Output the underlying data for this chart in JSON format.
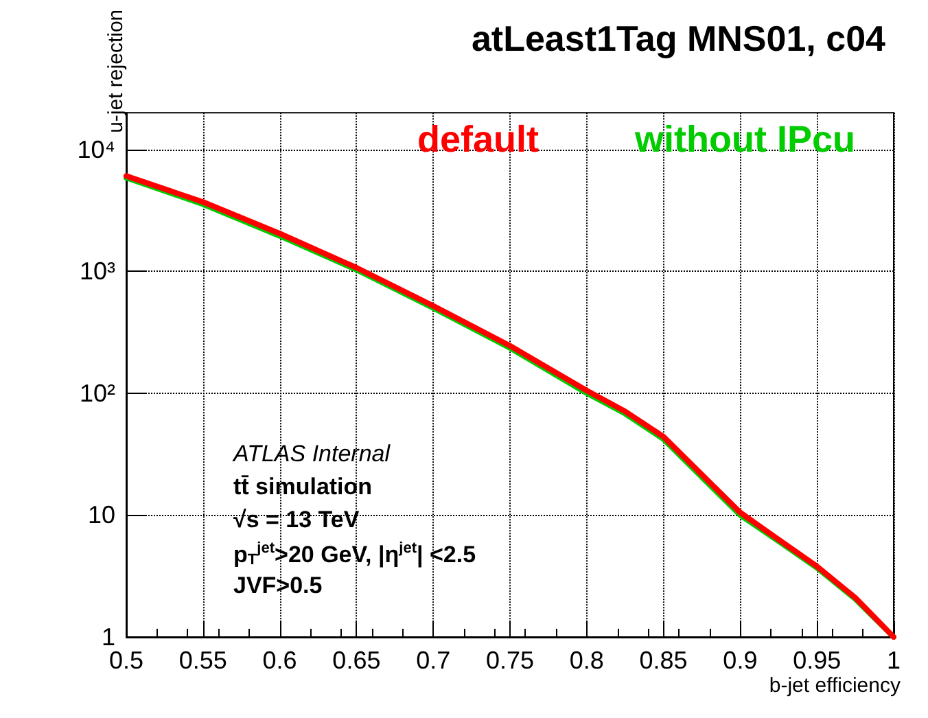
{
  "chart_data": {
    "type": "line",
    "title": "atLeast1Tag MNS01, c04",
    "xlabel": "b-jet efficiency",
    "ylabel": "u-jet rejection",
    "x": [
      0.5,
      0.55,
      0.6,
      0.65,
      0.7,
      0.75,
      0.8,
      0.825,
      0.85,
      0.875,
      0.9,
      0.925,
      0.95,
      0.975,
      1.0
    ],
    "series": [
      {
        "name": "without IPcu",
        "color": "#00cc00",
        "values": [
          5850,
          3550,
          1950,
          1030,
          500,
          235,
          100,
          68,
          42,
          20.5,
          10,
          6.1,
          3.7,
          2.05,
          1
        ]
      },
      {
        "name": "default",
        "color": "#ff0000",
        "values": [
          6050,
          3700,
          2040,
          1070,
          520,
          245,
          105,
          71,
          44,
          21.5,
          10.5,
          6.3,
          3.8,
          2.1,
          1
        ]
      }
    ],
    "xlim": [
      0.5,
      1
    ],
    "xticks": [
      0.5,
      0.55,
      0.6,
      0.65,
      0.7,
      0.75,
      0.8,
      0.85,
      0.9,
      0.95,
      1
    ],
    "ylim": [
      1,
      20000
    ],
    "yticks": [
      1,
      10,
      {
        "value": 100,
        "label": "10²"
      },
      {
        "value": 1000,
        "label": "10³"
      },
      {
        "value": 10000,
        "label": "10⁴"
      }
    ],
    "log": "y",
    "grid": true,
    "legend": "top right",
    "line_style": "solid",
    "annotations": [
      "ATLAS Internal",
      "tt̄ simulation",
      "√s = 13 TeV",
      "p$_{T}$$^{jet}$>20 GeV, |η$^{jet}$| <2.5",
      "JVF>0.5"
    ]
  }
}
